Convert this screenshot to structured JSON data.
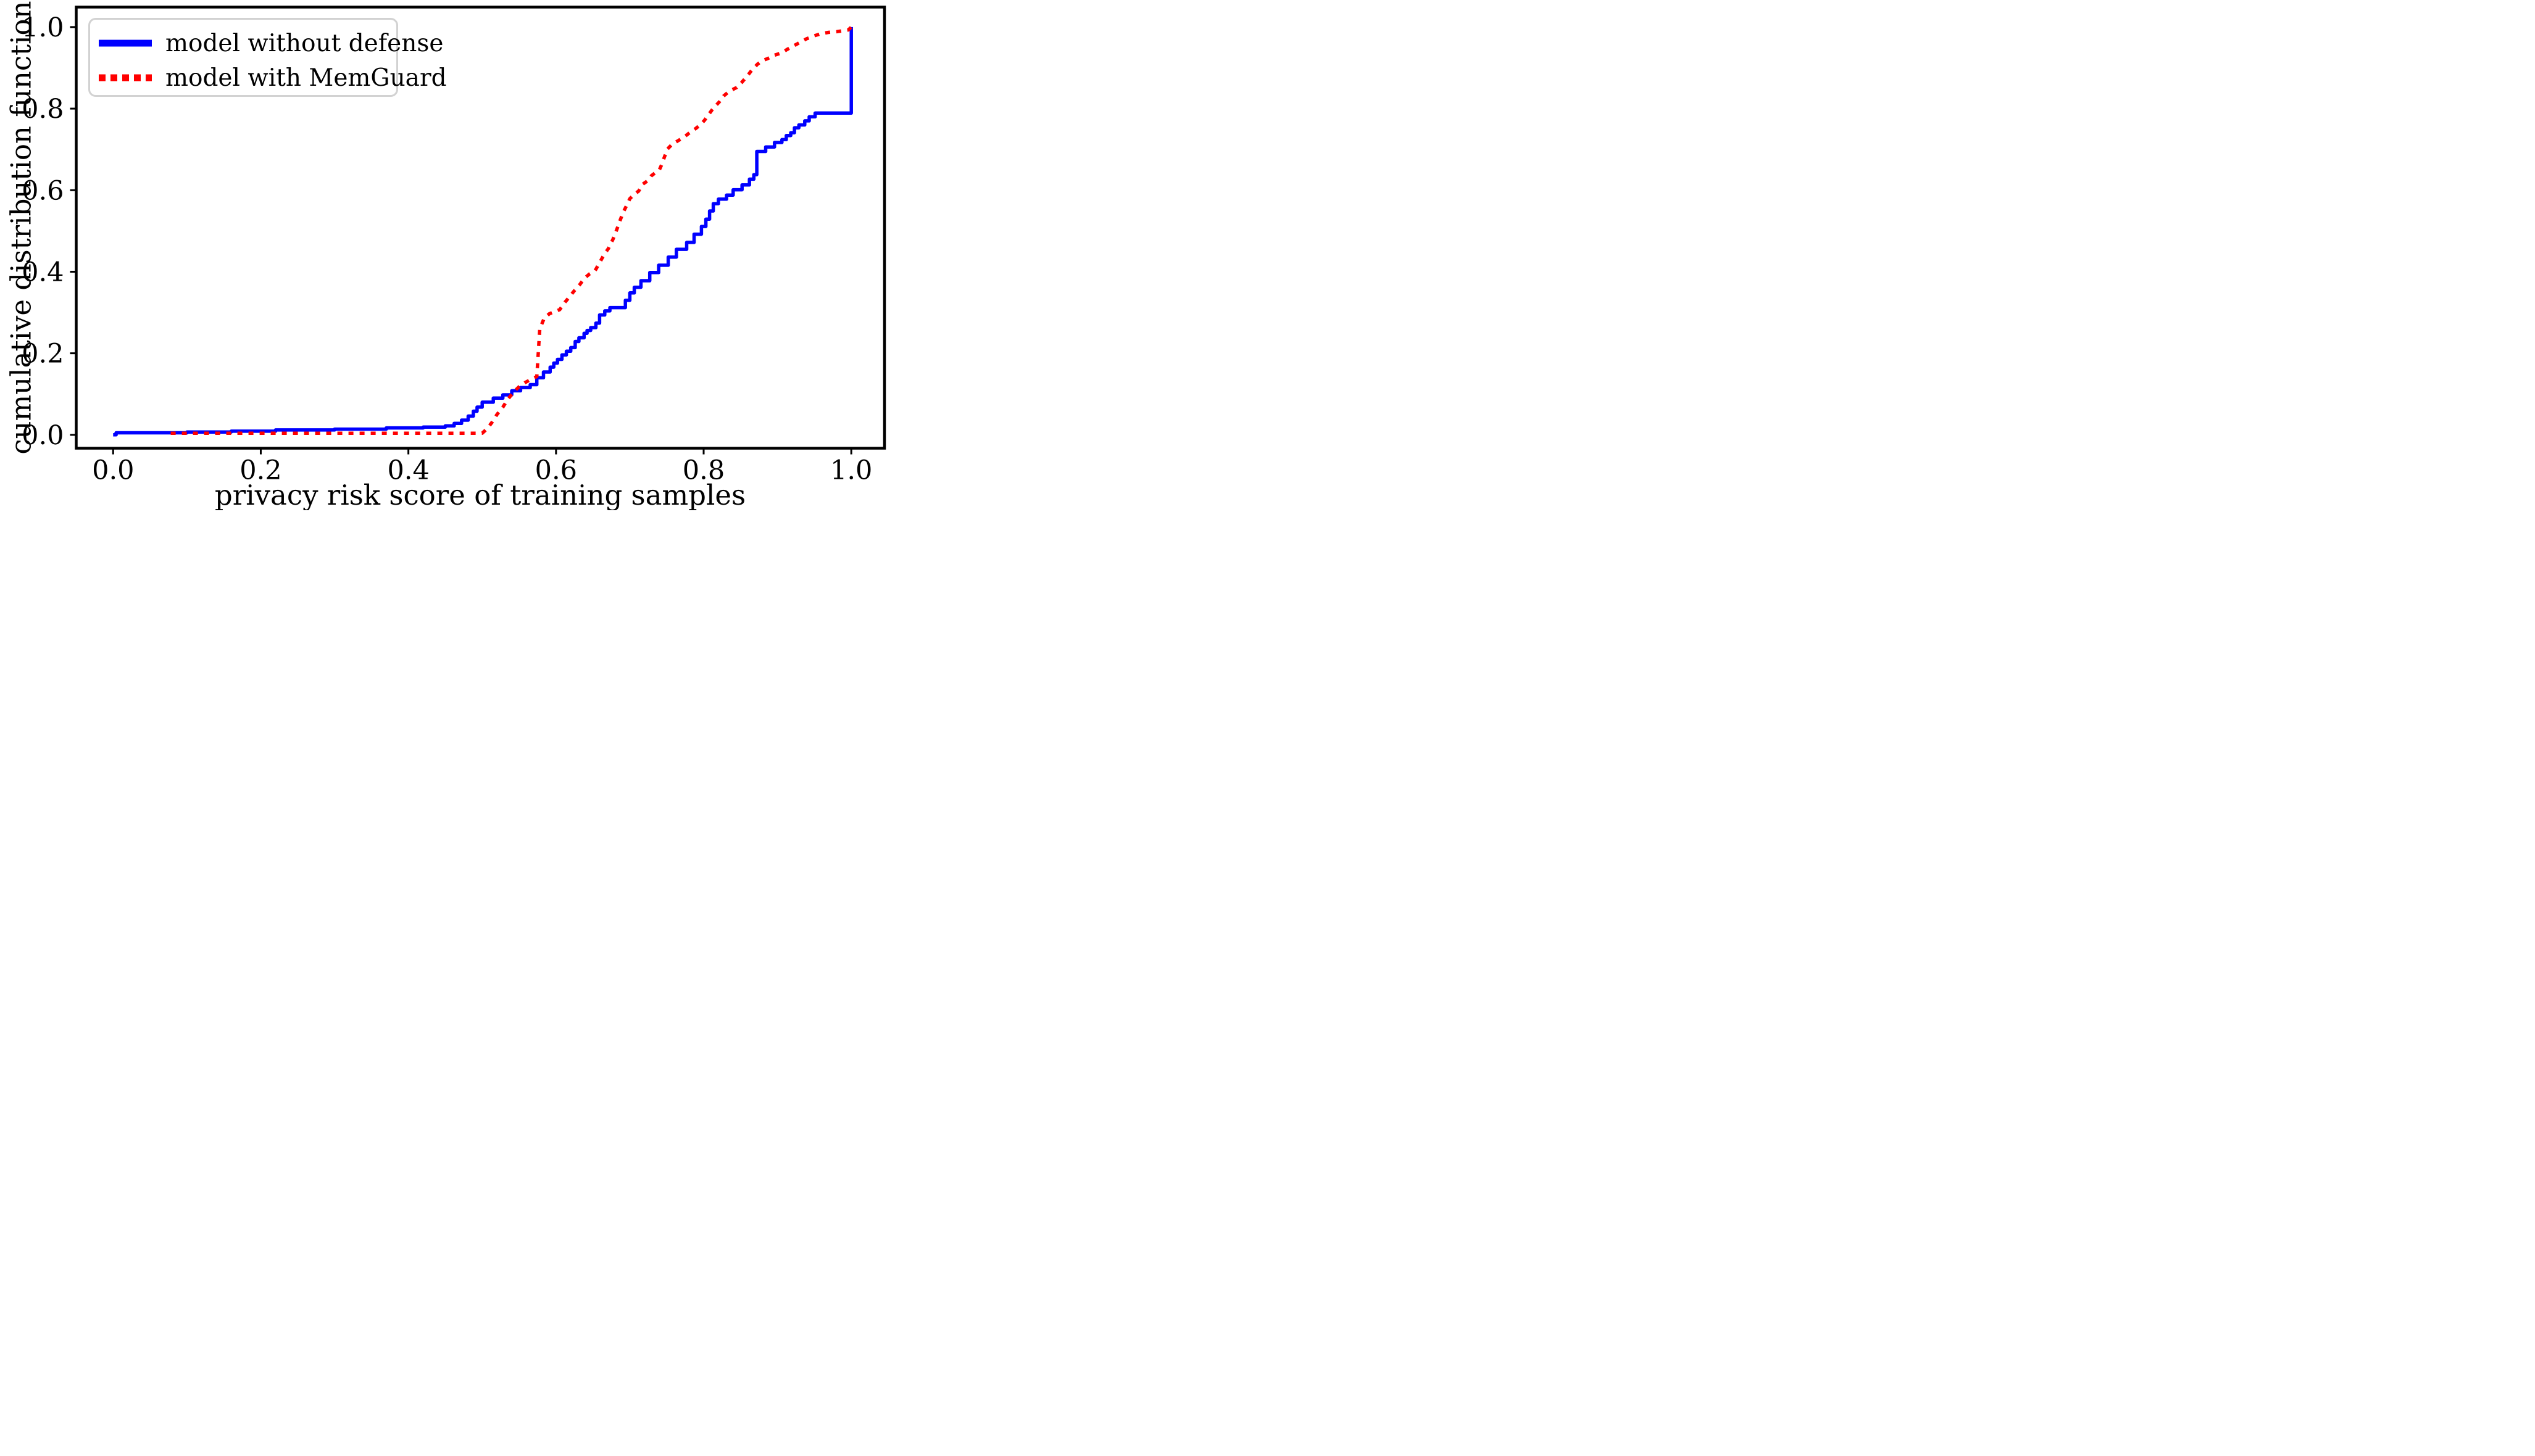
{
  "chart_data": {
    "type": "line",
    "title": "",
    "xlabel": "privacy risk score of training samples",
    "ylabel": "cumulative distribution function",
    "xlim": [
      -0.05,
      1.045
    ],
    "ylim": [
      -0.0328,
      1.049
    ],
    "grid": false,
    "background_color": "#ffffff",
    "spine_color": "#000000",
    "x_ticks": [
      0.0,
      0.2,
      0.4,
      0.6,
      0.8,
      1.0
    ],
    "x_tick_labels": [
      "0.0",
      "0.2",
      "0.4",
      "0.6",
      "0.8",
      "1.0"
    ],
    "y_ticks": [
      0.0,
      0.2,
      0.4,
      0.6,
      0.8,
      1.0
    ],
    "y_tick_labels": [
      "0.0",
      "0.2",
      "0.4",
      "0.6",
      "0.8",
      "1.0"
    ],
    "legend": {
      "position": "upper left",
      "border_color": "#d2d2d2",
      "fill_color": "#ffffff"
    },
    "series": [
      {
        "name": "model without defense",
        "color": "#0000ff",
        "style": "solid",
        "interpolation": "step-after",
        "points": [
          [
            0.0,
            0.0
          ],
          [
            0.004,
            0.005
          ],
          [
            0.1,
            0.007
          ],
          [
            0.16,
            0.009
          ],
          [
            0.22,
            0.012
          ],
          [
            0.3,
            0.014
          ],
          [
            0.37,
            0.017
          ],
          [
            0.42,
            0.019
          ],
          [
            0.45,
            0.022
          ],
          [
            0.462,
            0.028
          ],
          [
            0.472,
            0.036
          ],
          [
            0.481,
            0.046
          ],
          [
            0.488,
            0.058
          ],
          [
            0.493,
            0.068
          ],
          [
            0.5,
            0.08
          ],
          [
            0.515,
            0.09
          ],
          [
            0.528,
            0.098
          ],
          [
            0.54,
            0.108
          ],
          [
            0.552,
            0.116
          ],
          [
            0.565,
            0.123
          ],
          [
            0.574,
            0.14
          ],
          [
            0.583,
            0.154
          ],
          [
            0.592,
            0.166
          ],
          [
            0.597,
            0.176
          ],
          [
            0.602,
            0.185
          ],
          [
            0.608,
            0.196
          ],
          [
            0.614,
            0.205
          ],
          [
            0.62,
            0.214
          ],
          [
            0.626,
            0.229
          ],
          [
            0.631,
            0.238
          ],
          [
            0.638,
            0.249
          ],
          [
            0.642,
            0.256
          ],
          [
            0.647,
            0.263
          ],
          [
            0.654,
            0.274
          ],
          [
            0.659,
            0.294
          ],
          [
            0.666,
            0.304
          ],
          [
            0.673,
            0.312
          ],
          [
            0.694,
            0.33
          ],
          [
            0.7,
            0.348
          ],
          [
            0.706,
            0.362
          ],
          [
            0.715,
            0.378
          ],
          [
            0.727,
            0.398
          ],
          [
            0.739,
            0.416
          ],
          [
            0.752,
            0.436
          ],
          [
            0.763,
            0.455
          ],
          [
            0.777,
            0.472
          ],
          [
            0.787,
            0.492
          ],
          [
            0.797,
            0.511
          ],
          [
            0.803,
            0.529
          ],
          [
            0.808,
            0.549
          ],
          [
            0.813,
            0.567
          ],
          [
            0.82,
            0.578
          ],
          [
            0.831,
            0.588
          ],
          [
            0.84,
            0.601
          ],
          [
            0.852,
            0.613
          ],
          [
            0.862,
            0.627
          ],
          [
            0.868,
            0.638
          ],
          [
            0.872,
            0.695
          ],
          [
            0.884,
            0.706
          ],
          [
            0.896,
            0.717
          ],
          [
            0.906,
            0.724
          ],
          [
            0.912,
            0.734
          ],
          [
            0.918,
            0.741
          ],
          [
            0.923,
            0.753
          ],
          [
            0.929,
            0.76
          ],
          [
            0.937,
            0.77
          ],
          [
            0.943,
            0.78
          ],
          [
            0.951,
            0.789
          ],
          [
            1.0,
            0.791
          ],
          [
            1.0,
            1.0
          ]
        ]
      },
      {
        "name": "model with MemGuard",
        "color": "#ff0000",
        "style": "dotted",
        "interpolation": "linear",
        "points": [
          [
            0.078,
            0.004
          ],
          [
            0.5,
            0.004
          ],
          [
            0.506,
            0.014
          ],
          [
            0.513,
            0.03
          ],
          [
            0.52,
            0.05
          ],
          [
            0.528,
            0.068
          ],
          [
            0.535,
            0.088
          ],
          [
            0.543,
            0.106
          ],
          [
            0.55,
            0.118
          ],
          [
            0.558,
            0.128
          ],
          [
            0.566,
            0.136
          ],
          [
            0.574,
            0.143
          ],
          [
            0.578,
            0.26
          ],
          [
            0.584,
            0.286
          ],
          [
            0.591,
            0.297
          ],
          [
            0.605,
            0.307
          ],
          [
            0.612,
            0.325
          ],
          [
            0.618,
            0.338
          ],
          [
            0.625,
            0.354
          ],
          [
            0.632,
            0.368
          ],
          [
            0.638,
            0.383
          ],
          [
            0.645,
            0.394
          ],
          [
            0.653,
            0.403
          ],
          [
            0.659,
            0.422
          ],
          [
            0.665,
            0.442
          ],
          [
            0.671,
            0.457
          ],
          [
            0.677,
            0.479
          ],
          [
            0.682,
            0.502
          ],
          [
            0.687,
            0.527
          ],
          [
            0.691,
            0.546
          ],
          [
            0.695,
            0.56
          ],
          [
            0.7,
            0.579
          ],
          [
            0.706,
            0.59
          ],
          [
            0.712,
            0.598
          ],
          [
            0.717,
            0.614
          ],
          [
            0.724,
            0.623
          ],
          [
            0.729,
            0.635
          ],
          [
            0.734,
            0.642
          ],
          [
            0.74,
            0.65
          ],
          [
            0.743,
            0.662
          ],
          [
            0.747,
            0.682
          ],
          [
            0.751,
            0.701
          ],
          [
            0.757,
            0.712
          ],
          [
            0.765,
            0.721
          ],
          [
            0.774,
            0.731
          ],
          [
            0.781,
            0.741
          ],
          [
            0.789,
            0.751
          ],
          [
            0.796,
            0.761
          ],
          [
            0.801,
            0.771
          ],
          [
            0.807,
            0.786
          ],
          [
            0.813,
            0.801
          ],
          [
            0.821,
            0.816
          ],
          [
            0.827,
            0.831
          ],
          [
            0.835,
            0.843
          ],
          [
            0.845,
            0.852
          ],
          [
            0.851,
            0.863
          ],
          [
            0.859,
            0.88
          ],
          [
            0.866,
            0.896
          ],
          [
            0.873,
            0.909
          ],
          [
            0.879,
            0.917
          ],
          [
            0.887,
            0.923
          ],
          [
            0.896,
            0.931
          ],
          [
            0.906,
            0.937
          ],
          [
            0.913,
            0.945
          ],
          [
            0.921,
            0.953
          ],
          [
            0.929,
            0.961
          ],
          [
            0.939,
            0.971
          ],
          [
            0.949,
            0.978
          ],
          [
            0.959,
            0.984
          ],
          [
            0.969,
            0.987
          ],
          [
            0.981,
            0.989
          ],
          [
            0.996,
            0.993
          ],
          [
            1.0,
            1.0
          ]
        ]
      }
    ]
  }
}
